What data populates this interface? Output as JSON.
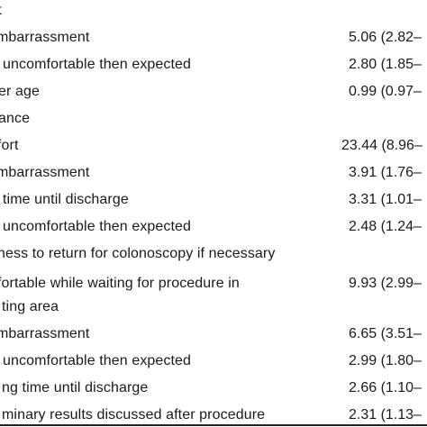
{
  "rows": [
    {
      "kind": "header",
      "label": "rt",
      "value": ""
    },
    {
      "kind": "item",
      "label": "mbarrassment",
      "value": "5.06 (2.82–"
    },
    {
      "kind": "item",
      "label": "uncomfortable then expected",
      "value": "2.80 (1.85–"
    },
    {
      "kind": "item",
      "label": "er age",
      "value": "0.99 (0.97–"
    },
    {
      "kind": "header",
      "label": "ance",
      "value": ""
    },
    {
      "kind": "item",
      "label": "fort",
      "value": "23.44 (8.96–"
    },
    {
      "kind": "item",
      "label": "mbarrassment",
      "value": "3.91 (1.76–"
    },
    {
      "kind": "item",
      "label": "time until discharge",
      "value": "3.31 (1.01–"
    },
    {
      "kind": "item",
      "label": "uncomfortable then expected",
      "value": "2.48 (1.24–"
    },
    {
      "kind": "header",
      "label": "ness to return for colonoscopy if necessary",
      "value": ""
    },
    {
      "kind": "item",
      "label": "fortable while waiting for procedure in",
      "value": "9.93 (2.99–"
    },
    {
      "kind": "item",
      "label": "ting area",
      "value": ""
    },
    {
      "kind": "item",
      "label": "mbarrassment",
      "value": "6.65 (3.51–"
    },
    {
      "kind": "item",
      "label": "uncomfortable then expected",
      "value": "2.99 (1.80–"
    },
    {
      "kind": "item",
      "label": "ng time until discharge",
      "value": "2.66 (1.10–"
    },
    {
      "kind": "item",
      "label": "minary results discussed after procedure",
      "value": "2.31 (1.13–"
    }
  ]
}
